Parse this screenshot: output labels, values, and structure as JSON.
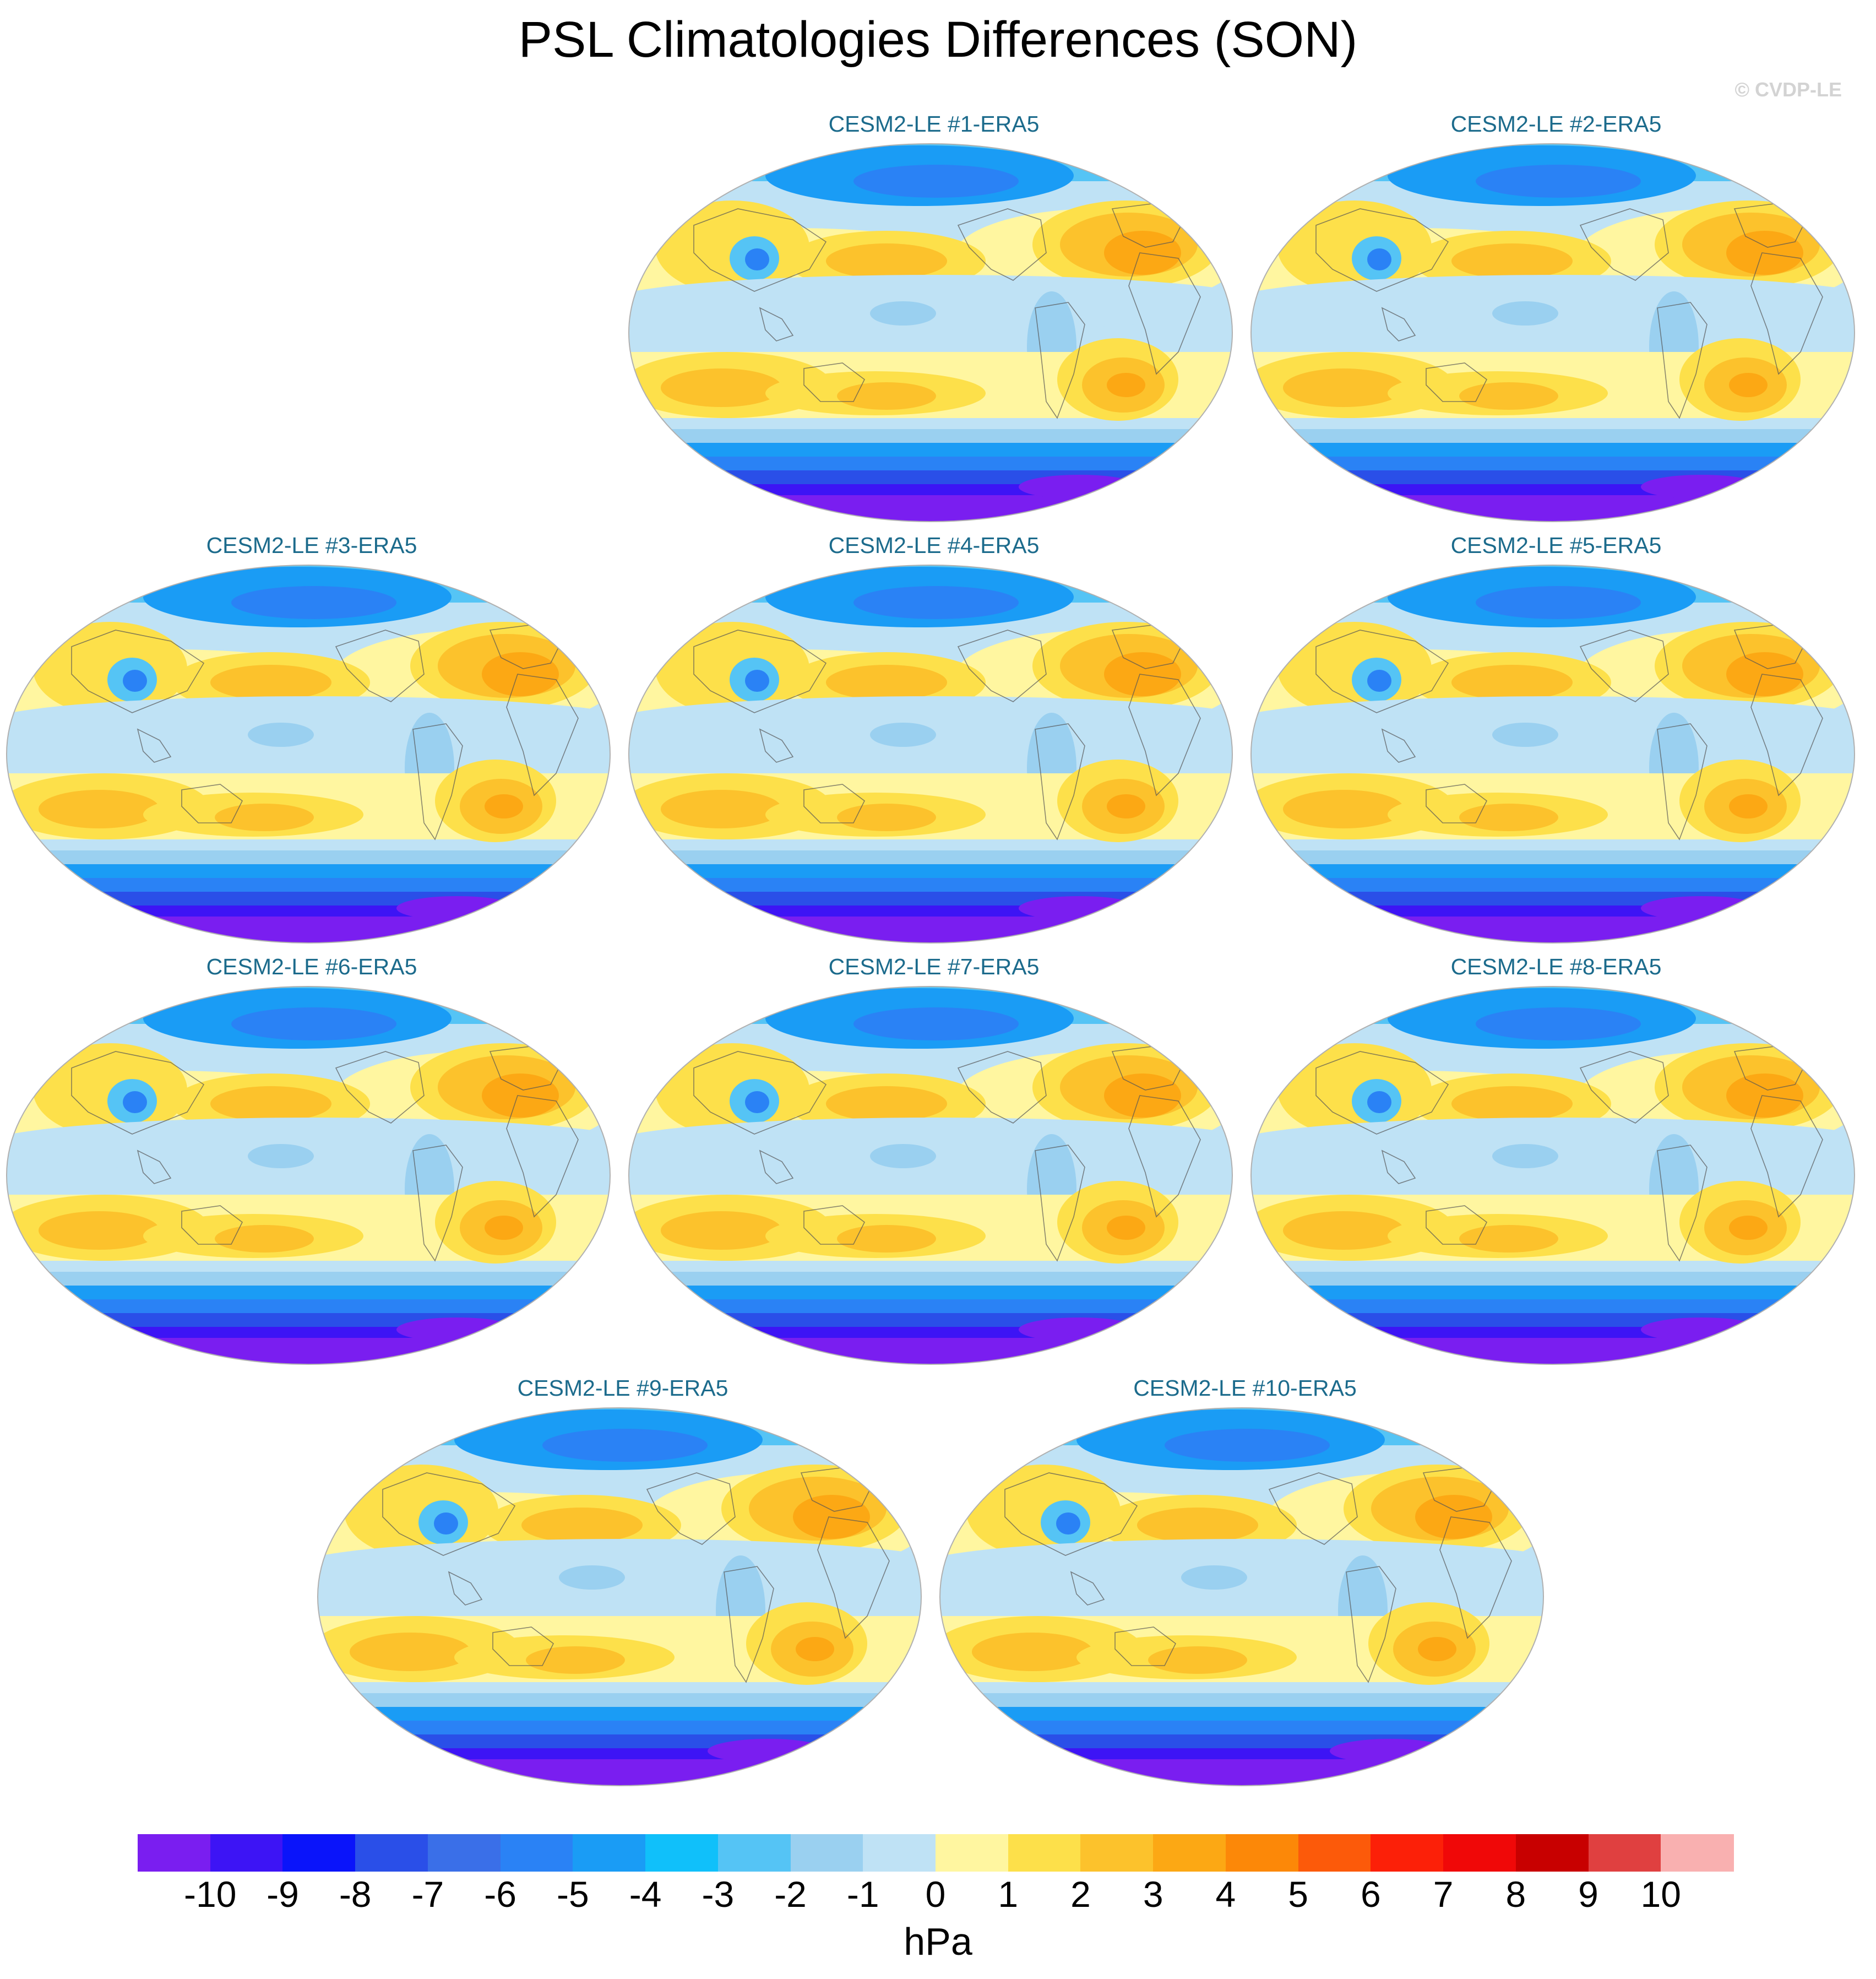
{
  "title": "PSL Climatologies Differences (SON)",
  "credit": "© CVDP-LE",
  "panels": [
    {
      "title": "CESM2-LE #1-ERA5"
    },
    {
      "title": "CESM2-LE #2-ERA5"
    },
    {
      "title": "CESM2-LE #3-ERA5"
    },
    {
      "title": "CESM2-LE #4-ERA5"
    },
    {
      "title": "CESM2-LE #5-ERA5"
    },
    {
      "title": "CESM2-LE #6-ERA5"
    },
    {
      "title": "CESM2-LE #7-ERA5"
    },
    {
      "title": "CESM2-LE #8-ERA5"
    },
    {
      "title": "CESM2-LE #9-ERA5"
    },
    {
      "title": "CESM2-LE #10-ERA5"
    }
  ],
  "colorbar": {
    "units": "hPa",
    "labels": [
      "-10",
      "-9",
      "-8",
      "-7",
      "-6",
      "-5",
      "-4",
      "-3",
      "-2",
      "-1",
      "0",
      "1",
      "2",
      "3",
      "4",
      "5",
      "6",
      "7",
      "8",
      "9",
      "10"
    ],
    "colors": [
      "#7a1ef0",
      "#3d14f5",
      "#0a14fa",
      "#2a4fe8",
      "#3a6fe8",
      "#2a82f5",
      "#1a9cf5",
      "#10c0fa",
      "#55c4f5",
      "#9ad0f0",
      "#bfe2f5",
      "#fff6a0",
      "#fde04a",
      "#fcc22c",
      "#fca814",
      "#fc8808",
      "#fc5a0a",
      "#fc2008",
      "#f00808",
      "#c80000",
      "#e04040",
      "#f9b0b0"
    ]
  }
}
